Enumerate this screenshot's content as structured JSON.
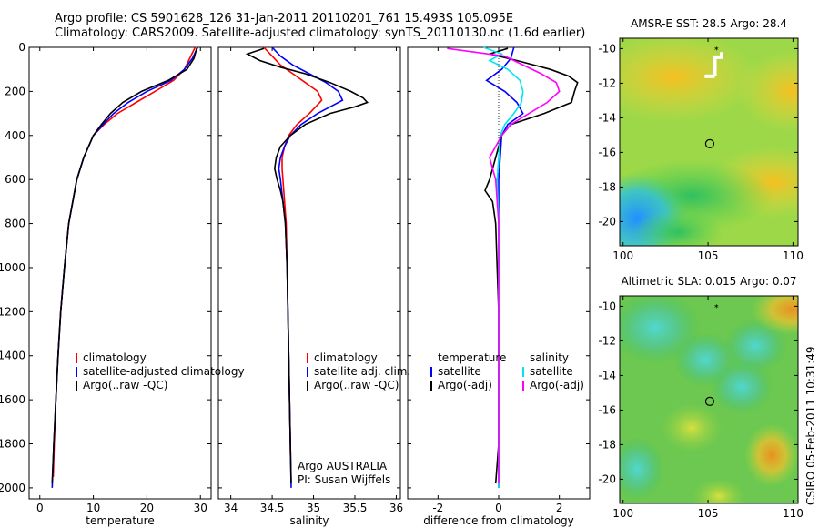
{
  "header": {
    "line1": "Argo profile: CS 5901628_126 31-Jan-2011 20110201_761 15.493S 105.095E",
    "line2": "Climatology: CARS2009. Satellite-adjusted climatology: synTS_20110130.nc (1.6d earlier)"
  },
  "credit": {
    "line1": "Argo AUSTRALIA",
    "line2": "PI: Susan Wijffels",
    "side": "CSIRO 05-Feb-2011 10:31:49"
  },
  "colors": {
    "climatology": "#ff0000",
    "satellite": "#0000ff",
    "argo": "#000000",
    "sal_sat": "#00e5ee",
    "sal_argo": "#ff00ff"
  },
  "chart_data": [
    {
      "type": "line",
      "xlabel": "temperature",
      "ylabel": "",
      "xlim": [
        -2,
        32
      ],
      "ylim": [
        2050,
        0
      ],
      "xticks": [
        0,
        10,
        20,
        30
      ],
      "yticks": [
        0,
        200,
        400,
        600,
        800,
        1000,
        1200,
        1400,
        1600,
        1800,
        2000
      ],
      "legend": [
        "climatology",
        "satellite-adjusted climatology",
        "Argo(..raw -QC)"
      ],
      "series": [
        {
          "name": "climatology",
          "color": "#ff0000",
          "depth": [
            0,
            50,
            100,
            150,
            200,
            250,
            300,
            350,
            400,
            500,
            600,
            800,
            1000,
            1200,
            1400,
            1600,
            1800,
            1950
          ],
          "values": [
            29,
            28,
            27,
            25,
            21.5,
            18,
            14.5,
            12,
            10,
            8.2,
            6.9,
            5.4,
            4.6,
            3.9,
            3.4,
            3.0,
            2.7,
            2.5
          ]
        },
        {
          "name": "satellite-adjusted climatology",
          "color": "#0000ff",
          "depth": [
            0,
            50,
            100,
            150,
            200,
            250,
            300,
            350,
            400,
            500,
            600,
            800,
            1000,
            1200,
            1400,
            1600,
            1800,
            2000
          ],
          "values": [
            29.5,
            28.5,
            27,
            24.5,
            20,
            16.5,
            13.8,
            11.8,
            10,
            8.2,
            6.9,
            5.4,
            4.6,
            3.9,
            3.4,
            3.0,
            2.6,
            2.3
          ]
        },
        {
          "name": "Argo(..raw -QC)",
          "color": "#000000",
          "depth": [
            5,
            50,
            100,
            150,
            200,
            250,
            300,
            350,
            400,
            500,
            600,
            800,
            1000,
            1200,
            1400,
            1600,
            1800,
            1980
          ],
          "values": [
            29.3,
            28.8,
            27.5,
            24,
            19,
            15.5,
            13.2,
            11.5,
            10,
            8.2,
            6.9,
            5.4,
            4.6,
            3.9,
            3.4,
            3.0,
            2.6,
            2.3
          ]
        }
      ]
    },
    {
      "type": "line",
      "xlabel": "salinity",
      "xlim": [
        33.85,
        36.05
      ],
      "ylim": [
        2050,
        0
      ],
      "xticks": [
        34,
        34.5,
        35,
        35.5,
        36
      ],
      "legend": [
        "climatology",
        "satellite adj. clim.",
        "Argo(..raw -QC)"
      ],
      "series": [
        {
          "name": "climatology",
          "color": "#ff0000",
          "depth": [
            0,
            40,
            80,
            120,
            160,
            200,
            240,
            260,
            300,
            350,
            400,
            450,
            500,
            550,
            600,
            700,
            800,
            1000,
            1200,
            1400,
            1600,
            1800,
            1850
          ],
          "values": [
            34.4,
            34.5,
            34.6,
            34.75,
            34.9,
            35.05,
            35.1,
            35.05,
            34.95,
            34.8,
            34.7,
            34.65,
            34.62,
            34.62,
            34.63,
            34.65,
            34.67,
            34.68,
            34.69,
            34.7,
            34.71,
            34.72,
            34.72
          ]
        },
        {
          "name": "satellite adj. clim.",
          "color": "#0000ff",
          "depth": [
            0,
            40,
            80,
            120,
            160,
            200,
            240,
            260,
            300,
            350,
            400,
            450,
            500,
            550,
            600,
            700,
            800,
            1000,
            1200,
            1400,
            1600,
            1800,
            2000
          ],
          "values": [
            34.5,
            34.6,
            34.75,
            34.95,
            35.15,
            35.3,
            35.35,
            35.25,
            35.05,
            34.85,
            34.72,
            34.65,
            34.6,
            34.58,
            34.6,
            34.63,
            34.66,
            34.68,
            34.69,
            34.7,
            34.71,
            34.72,
            34.73
          ]
        },
        {
          "name": "Argo(..raw -QC)",
          "color": "#000000",
          "depth": [
            5,
            30,
            60,
            90,
            120,
            160,
            200,
            230,
            250,
            270,
            300,
            350,
            400,
            450,
            500,
            550,
            600,
            650,
            700,
            800,
            1000,
            1200,
            1400,
            1600,
            1800,
            1980
          ],
          "values": [
            34.4,
            34.2,
            34.35,
            34.6,
            34.9,
            35.2,
            35.45,
            35.6,
            35.65,
            35.5,
            35.2,
            34.9,
            34.72,
            34.6,
            34.55,
            34.53,
            34.56,
            34.6,
            34.63,
            34.66,
            34.68,
            34.69,
            34.7,
            34.71,
            34.72,
            34.73
          ]
        }
      ]
    },
    {
      "type": "line",
      "xlabel": "difference from climatology",
      "xlim": [
        -3,
        3
      ],
      "ylim": [
        2050,
        0
      ],
      "xticks": [
        -2,
        0,
        2
      ],
      "legend": [
        "temperature",
        "satellite",
        "Argo(-adj)",
        "salinity",
        "satellite",
        "Argo(-adj)"
      ],
      "series": [
        {
          "name": "temperature satellite",
          "color": "#0000ff",
          "depth": [
            0,
            50,
            100,
            150,
            200,
            250,
            300,
            350,
            400,
            500,
            600,
            800,
            1000,
            1200,
            1400,
            1600,
            1800,
            2000
          ],
          "values": [
            0.5,
            0.4,
            0.1,
            -0.4,
            0.2,
            0.6,
            0.8,
            0.3,
            0.1,
            0.05,
            0,
            0,
            0,
            0,
            0,
            0,
            0,
            0
          ]
        },
        {
          "name": "temperature Argo(-adj)",
          "color": "#000000",
          "depth": [
            5,
            30,
            60,
            100,
            130,
            160,
            200,
            250,
            300,
            350,
            400,
            500,
            600,
            650,
            700,
            800,
            1000,
            1200,
            1400,
            1600,
            1800,
            1980
          ],
          "values": [
            0.3,
            -0.3,
            0.6,
            1.7,
            2.3,
            2.6,
            2.5,
            2.4,
            1.5,
            0.4,
            0.1,
            -0.1,
            -0.3,
            -0.45,
            -0.2,
            -0.1,
            -0.05,
            0,
            0,
            0,
            0,
            -0.1
          ]
        },
        {
          "name": "salinity satellite",
          "color": "#00e5ee",
          "depth": [
            0,
            30,
            60,
            100,
            150,
            200,
            250,
            300,
            350,
            400,
            500,
            600,
            800,
            1000,
            1200,
            1400,
            1600,
            1800,
            2000
          ],
          "values": [
            -0.5,
            0.1,
            -0.3,
            0.3,
            0.7,
            0.8,
            0.75,
            0.5,
            0.2,
            0.05,
            0,
            -0.05,
            0,
            0,
            0,
            0,
            0,
            0,
            0
          ]
        },
        {
          "name": "salinity Argo(-adj)",
          "color": "#ff00ff",
          "depth": [
            5,
            40,
            80,
            120,
            160,
            200,
            250,
            300,
            350,
            400,
            450,
            500,
            550,
            600,
            700,
            800,
            1000,
            1200,
            1400,
            1600,
            1800,
            1980
          ],
          "values": [
            -1.7,
            0.2,
            0.8,
            1.4,
            1.9,
            2.0,
            1.6,
            1.0,
            0.4,
            0.1,
            -0.1,
            -0.3,
            -0.2,
            -0.1,
            -0.05,
            0,
            0,
            0,
            0,
            0,
            0,
            0
          ]
        }
      ]
    },
    {
      "type": "heatmap",
      "title": "AMSR-E SST: 28.5 Argo: 28.4",
      "xlim": [
        99.8,
        110.3
      ],
      "ylim": [
        -21.4,
        -9.4
      ],
      "xticks": [
        100,
        105,
        110
      ],
      "yticks": [
        -10,
        -12,
        -14,
        -16,
        -18,
        -20
      ],
      "marker": {
        "lon": 105.1,
        "lat": -15.5
      }
    },
    {
      "type": "heatmap",
      "title": "Altimetric SLA: 0.015 Argo: 0.07",
      "xlim": [
        99.8,
        110.3
      ],
      "ylim": [
        -21.4,
        -9.4
      ],
      "xticks": [
        100,
        105,
        110
      ],
      "yticks": [
        -10,
        -12,
        -14,
        -16,
        -18,
        -20
      ],
      "marker": {
        "lon": 105.1,
        "lat": -15.5
      }
    }
  ]
}
